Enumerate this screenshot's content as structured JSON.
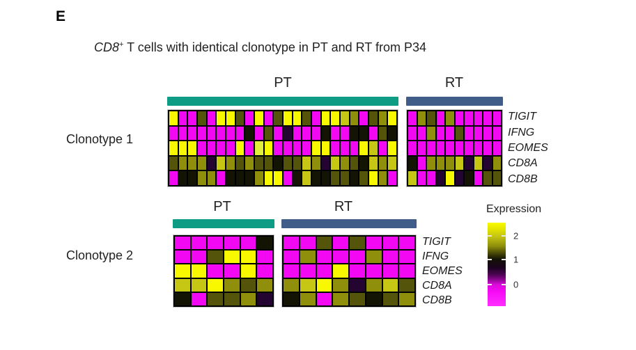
{
  "panel_label": "E",
  "title": {
    "gene_italic": "CD8",
    "superscript": "+",
    "rest": " T cells with identical clonotype in PT and RT from P34"
  },
  "genes": [
    "TIGIT",
    "IFNG",
    "EOMES",
    "CD8A",
    "CD8B"
  ],
  "colors": {
    "pt_bar": "#0E9C85",
    "rt_bar": "#405C88",
    "grid_line": "#000000",
    "palette": {
      "M": "#F208F2",
      "Y": "#F8F800",
      "YL": "#E2EE3C",
      "YO": "#C6C614",
      "O": "#8F8F0C",
      "KO": "#54540A",
      "K": "#141404",
      "P": "#240430"
    }
  },
  "legend": {
    "title": "Expression",
    "ticks": [
      {
        "label": "2",
        "pos_pct": 16
      },
      {
        "label": "1",
        "pos_pct": 44
      },
      {
        "label": "0",
        "pos_pct": 74
      }
    ]
  },
  "chart_data": {
    "type": "heatmap",
    "title": "CD8+ T cells with identical clonotype in PT and RT from P34",
    "row_labels": [
      "TIGIT",
      "IFNG",
      "EOMES",
      "CD8A",
      "CD8B"
    ],
    "colorbar": {
      "title": "Expression",
      "tick_values": [
        2,
        1,
        0
      ],
      "high_color": "yellow",
      "mid_color": "black",
      "low_color": "magenta"
    },
    "code_value_scale": {
      "M": 0,
      "P": 0.5,
      "K": 1.0,
      "KO": 1.4,
      "O": 1.7,
      "YO": 2.0,
      "YL": 2.2,
      "Y": 2.4
    },
    "panels": [
      {
        "name": "Clonotype 1",
        "groups": [
          {
            "label": "PT",
            "n_cells": 24,
            "matrix": [
              [
                "Y",
                "M",
                "M",
                "KO",
                "M",
                "Y",
                "Y",
                "KO",
                "M",
                "Y",
                "M",
                "KO",
                "Y",
                "Y",
                "KO",
                "M",
                "Y",
                "Y",
                "YO",
                "O",
                "M",
                "KO",
                "O",
                "Y"
              ],
              [
                "M",
                "M",
                "M",
                "M",
                "M",
                "M",
                "M",
                "M",
                "K",
                "M",
                "KO",
                "M",
                "P",
                "M",
                "M",
                "M",
                "K",
                "M",
                "M",
                "K",
                "K",
                "M",
                "KO",
                "K"
              ],
              [
                "Y",
                "Y",
                "Y",
                "M",
                "M",
                "M",
                "M",
                "Y",
                "M",
                "YL",
                "Y",
                "M",
                "M",
                "M",
                "M",
                "Y",
                "Y",
                "M",
                "M",
                "M",
                "Y",
                "YO",
                "M",
                "Y"
              ],
              [
                "KO",
                "O",
                "O",
                "O",
                "P",
                "YO",
                "O",
                "KO",
                "O",
                "KO",
                "KO",
                "K",
                "KO",
                "KO",
                "YO",
                "O",
                "P",
                "YO",
                "O",
                "KO",
                "K",
                "YO",
                "O",
                "YO"
              ],
              [
                "M",
                "K",
                "K",
                "O",
                "O",
                "M",
                "K",
                "K",
                "K",
                "O",
                "Y",
                "Y",
                "M",
                "K",
                "YO",
                "K",
                "K",
                "KO",
                "KO",
                "K",
                "KO",
                "Y",
                "O",
                "M"
              ]
            ]
          },
          {
            "label": "RT",
            "n_cells": 10,
            "matrix": [
              [
                "M",
                "O",
                "KO",
                "M",
                "O",
                "M",
                "M",
                "M",
                "M",
                "M"
              ],
              [
                "M",
                "M",
                "O",
                "M",
                "M",
                "KO",
                "M",
                "M",
                "M",
                "M"
              ],
              [
                "M",
                "M",
                "M",
                "M",
                "M",
                "M",
                "M",
                "M",
                "M",
                "M"
              ],
              [
                "K",
                "M",
                "O",
                "O",
                "O",
                "YO",
                "P",
                "YO",
                "P",
                "O"
              ],
              [
                "YO",
                "M",
                "M",
                "P",
                "Y",
                "P",
                "K",
                "M",
                "KO",
                "KO"
              ]
            ]
          }
        ]
      },
      {
        "name": "Clonotype 2",
        "groups": [
          {
            "label": "PT",
            "n_cells": 6,
            "matrix": [
              [
                "M",
                "M",
                "M",
                "M",
                "M",
                "K"
              ],
              [
                "M",
                "M",
                "KO",
                "Y",
                "Y",
                "M"
              ],
              [
                "Y",
                "Y",
                "M",
                "M",
                "Y",
                "M"
              ],
              [
                "YO",
                "YO",
                "Y",
                "O",
                "KO",
                "O"
              ],
              [
                "K",
                "M",
                "KO",
                "KO",
                "O",
                "P"
              ]
            ]
          },
          {
            "label": "RT",
            "n_cells": 8,
            "matrix": [
              [
                "M",
                "M",
                "KO",
                "M",
                "KO",
                "M",
                "M",
                "M"
              ],
              [
                "M",
                "O",
                "M",
                "M",
                "M",
                "O",
                "M",
                "M"
              ],
              [
                "M",
                "M",
                "M",
                "Y",
                "M",
                "M",
                "M",
                "M"
              ],
              [
                "O",
                "YO",
                "Y",
                "O",
                "P",
                "O",
                "YO",
                "KO"
              ],
              [
                "K",
                "O",
                "M",
                "O",
                "KO",
                "K",
                "KO",
                "O"
              ]
            ]
          }
        ]
      }
    ]
  }
}
